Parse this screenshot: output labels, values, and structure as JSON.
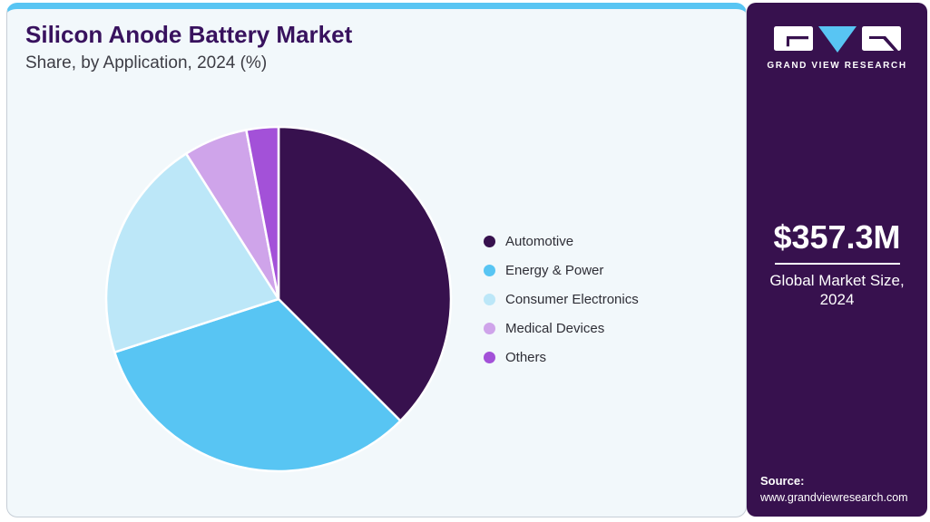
{
  "header": {
    "title": "Silicon Anode Battery Market",
    "subtitle": "Share, by Application, 2024 (%)"
  },
  "chart_data": {
    "type": "pie",
    "title": "Silicon Anode Battery Market Share, by Application, 2024 (%)",
    "labels": [
      "Automotive",
      "Energy & Power",
      "Consumer Electronics",
      "Medical Devices",
      "Others"
    ],
    "values": [
      37.5,
      32.5,
      21.0,
      6.0,
      3.0
    ],
    "unit": "%",
    "colors": [
      "#37114e",
      "#58c5f3",
      "#bce7f8",
      "#cfa4ea",
      "#a351d8"
    ],
    "start_angle_deg": 0,
    "direction": "clockwise",
    "slice_border_color": "#ffffff",
    "legend_position": "right",
    "data_labels_visible": false
  },
  "sidebar": {
    "brand": {
      "logo_icon": "grand-view-research-logo",
      "name": "GRAND VIEW RESEARCH"
    },
    "market_size": {
      "value": "$357.3M",
      "caption_line1": "Global Market Size,",
      "caption_line2": "2024"
    },
    "source": {
      "label": "Source:",
      "url": "www.grandviewresearch.com"
    },
    "background_color": "#37114e",
    "accent_color": "#58c5f3"
  }
}
